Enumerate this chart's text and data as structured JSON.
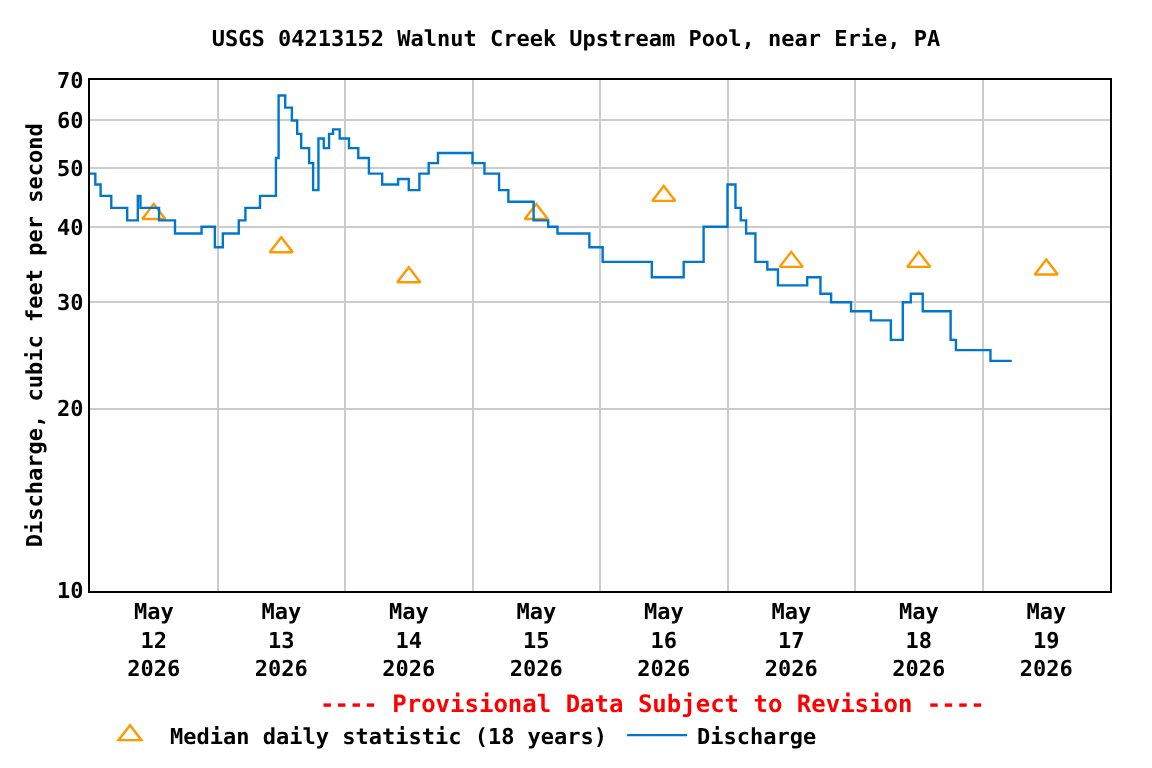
{
  "chart_data": {
    "type": "step",
    "title": "USGS 04213152 Walnut Creek Upstream Pool, near Erie, PA",
    "ylabel": "Discharge, cubic feet per second",
    "annotations": [
      "---- Provisional Data Subject to Revision ----"
    ],
    "log": true,
    "grid": true,
    "legend": "bottom",
    "xlim": [
      "2026-05-12T00:00",
      "2026-05-20T00:00"
    ],
    "xticks": [
      {
        "value": "2026-05-12T12:00",
        "label": "May\n12\n2026"
      },
      {
        "value": "2026-05-13T12:00",
        "label": "May\n13\n2026"
      },
      {
        "value": "2026-05-14T12:00",
        "label": "May\n14\n2026"
      },
      {
        "value": "2026-05-15T12:00",
        "label": "May\n15\n2026"
      },
      {
        "value": "2026-05-16T12:00",
        "label": "May\n16\n2026"
      },
      {
        "value": "2026-05-17T12:00",
        "label": "May\n17\n2026"
      },
      {
        "value": "2026-05-18T12:00",
        "label": "May\n18\n2026"
      },
      {
        "value": "2026-05-19T12:00",
        "label": "May\n19\n2026"
      },
      {
        "value": "2026-05-13T00:00",
        "label": null
      },
      {
        "value": "2026-05-14T00:00",
        "label": null
      },
      {
        "value": "2026-05-15T00:00",
        "label": null
      },
      {
        "value": "2026-05-16T00:00",
        "label": null
      },
      {
        "value": "2026-05-17T00:00",
        "label": null
      },
      {
        "value": "2026-05-18T00:00",
        "label": null
      },
      {
        "value": "2026-05-19T00:00",
        "label": null
      }
    ],
    "ylim": [
      10,
      70
    ],
    "yticks": [
      10,
      20,
      30,
      40,
      50,
      60,
      70
    ],
    "series": [
      {
        "name": "Median daily statistic (18 years)",
        "type": "scatter",
        "marker": "triangle",
        "color": "#ff9900",
        "x": [
          "2026-05-12T12:00",
          "2026-05-13T12:00",
          "2026-05-14T12:00",
          "2026-05-15T12:00",
          "2026-05-16T12:00",
          "2026-05-17T12:00",
          "2026-05-18T12:00",
          "2026-05-19T12:00"
        ],
        "values": [
          42,
          37,
          33,
          42,
          45,
          35,
          35,
          34
        ]
      },
      {
        "name": "Discharge",
        "color": "#0077cc",
        "x": [
          "2026-05-12T00:00",
          "2026-05-12T01:00",
          "2026-05-12T02:00",
          "2026-05-12T04:00",
          "2026-05-12T07:00",
          "2026-05-12T09:00",
          "2026-05-12T09:30",
          "2026-05-12T13:00",
          "2026-05-12T16:00",
          "2026-05-12T21:00",
          "2026-05-12T23:30",
          "2026-05-13T01:00",
          "2026-05-13T04:00",
          "2026-05-13T05:15",
          "2026-05-13T08:00",
          "2026-05-13T09:45",
          "2026-05-13T11:00",
          "2026-05-13T11:30",
          "2026-05-13T12:45",
          "2026-05-13T14:00",
          "2026-05-13T15:00",
          "2026-05-13T15:45",
          "2026-05-13T17:15",
          "2026-05-13T18:00",
          "2026-05-13T19:00",
          "2026-05-13T20:00",
          "2026-05-13T21:00",
          "2026-05-13T21:45",
          "2026-05-13T23:00",
          "2026-05-14T00:45",
          "2026-05-14T02:30",
          "2026-05-14T04:30",
          "2026-05-14T07:00",
          "2026-05-14T10:00",
          "2026-05-14T12:00",
          "2026-05-14T14:00",
          "2026-05-14T15:45",
          "2026-05-14T17:30",
          "2026-05-14T21:30",
          "2026-05-15T00:00",
          "2026-05-15T02:15",
          "2026-05-15T05:00",
          "2026-05-15T06:45",
          "2026-05-15T09:30",
          "2026-05-15T11:30",
          "2026-05-15T14:15",
          "2026-05-15T16:00",
          "2026-05-15T18:45",
          "2026-05-15T22:00",
          "2026-05-16T00:30",
          "2026-05-16T08:00",
          "2026-05-16T09:45",
          "2026-05-16T14:30",
          "2026-05-16T15:45",
          "2026-05-16T19:00",
          "2026-05-16T19:30",
          "2026-05-16T23:15",
          "2026-05-17T00:00",
          "2026-05-17T00:45",
          "2026-05-17T01:30",
          "2026-05-17T02:30",
          "2026-05-17T03:30",
          "2026-05-17T05:00",
          "2026-05-17T05:15",
          "2026-05-17T07:30",
          "2026-05-17T09:30",
          "2026-05-17T13:00",
          "2026-05-17T15:00",
          "2026-05-17T17:30",
          "2026-05-17T19:30",
          "2026-05-17T23:15",
          "2026-05-18T03:00",
          "2026-05-18T06:30",
          "2026-05-18T06:45",
          "2026-05-18T09:00",
          "2026-05-18T10:30",
          "2026-05-18T12:30",
          "2026-05-18T12:45",
          "2026-05-18T16:00",
          "2026-05-18T18:00",
          "2026-05-18T19:00",
          "2026-05-19T00:00",
          "2026-05-19T01:30",
          "2026-05-19T05:30"
        ],
        "values": [
          49,
          47,
          45,
          43,
          41,
          45,
          43,
          41,
          39,
          40,
          37,
          39,
          41,
          43,
          45,
          45,
          52,
          66,
          63,
          60,
          57,
          54,
          51,
          46,
          56,
          54,
          57,
          58,
          56,
          54,
          52,
          49,
          47,
          48,
          46,
          49,
          51,
          53,
          53,
          51,
          49,
          46,
          44,
          44,
          41,
          40,
          39,
          39,
          37,
          35,
          35,
          33,
          33,
          35,
          35,
          40,
          40,
          47,
          47,
          43,
          41,
          39,
          39,
          35,
          34,
          32,
          32,
          33,
          31,
          30,
          29,
          28,
          28,
          26,
          30,
          31,
          31,
          29,
          29,
          26,
          25,
          25,
          24,
          24
        ]
      }
    ]
  }
}
